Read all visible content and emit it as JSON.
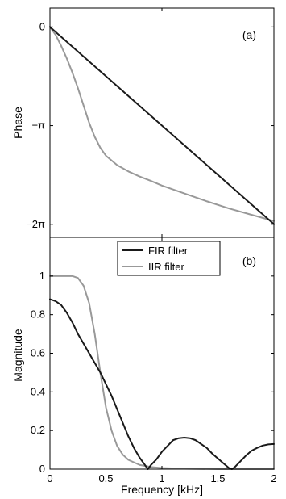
{
  "chart_data": [
    {
      "type": "line",
      "panel_label": "(a)",
      "xlabel": "",
      "ylabel": "Phase",
      "xlim": [
        0,
        2
      ],
      "ylim": [
        -6.7,
        0.6
      ],
      "x_ticks": [],
      "y_ticks": [
        {
          "value": 0,
          "label": "0"
        },
        {
          "value": -3.14159,
          "label": "−π"
        },
        {
          "value": -6.28319,
          "label": "−2π"
        }
      ],
      "series": [
        {
          "name": "FIR filter",
          "color": "#1a1a1a",
          "points": [
            [
              0,
              0
            ],
            [
              2,
              -6.28
            ]
          ]
        },
        {
          "name": "IIR filter",
          "color": "#999999",
          "points": [
            [
              0,
              0
            ],
            [
              0.05,
              -0.25
            ],
            [
              0.1,
              -0.6
            ],
            [
              0.15,
              -1.0
            ],
            [
              0.2,
              -1.45
            ],
            [
              0.25,
              -1.95
            ],
            [
              0.3,
              -2.5
            ],
            [
              0.35,
              -3.05
            ],
            [
              0.4,
              -3.5
            ],
            [
              0.45,
              -3.85
            ],
            [
              0.5,
              -4.1
            ],
            [
              0.6,
              -4.4
            ],
            [
              0.7,
              -4.6
            ],
            [
              0.8,
              -4.76
            ],
            [
              0.9,
              -4.9
            ],
            [
              1.0,
              -5.05
            ],
            [
              1.2,
              -5.3
            ],
            [
              1.4,
              -5.55
            ],
            [
              1.6,
              -5.78
            ],
            [
              1.8,
              -5.98
            ],
            [
              2.0,
              -6.18
            ]
          ]
        }
      ]
    },
    {
      "type": "line",
      "panel_label": "(b)",
      "xlabel": "Frequency [kHz]",
      "ylabel": "Magnitude",
      "xlim": [
        0,
        2
      ],
      "ylim": [
        0,
        1.2
      ],
      "x_ticks": [
        {
          "value": 0,
          "label": "0"
        },
        {
          "value": 0.5,
          "label": "0.5"
        },
        {
          "value": 1,
          "label": "1"
        },
        {
          "value": 1.5,
          "label": "1.5"
        },
        {
          "value": 2,
          "label": "2"
        }
      ],
      "y_ticks": [
        {
          "value": 0,
          "label": "0"
        },
        {
          "value": 0.2,
          "label": "0.2"
        },
        {
          "value": 0.4,
          "label": "0.4"
        },
        {
          "value": 0.6,
          "label": "0.6"
        },
        {
          "value": 0.8,
          "label": "0.8"
        },
        {
          "value": 1,
          "label": "1"
        }
      ],
      "legend": {
        "position": "top-center",
        "entries": [
          "FIR filter",
          "IIR filter"
        ]
      },
      "series": [
        {
          "name": "FIR filter",
          "color": "#1a1a1a",
          "points": [
            [
              0,
              0.88
            ],
            [
              0.05,
              0.87
            ],
            [
              0.1,
              0.85
            ],
            [
              0.15,
              0.81
            ],
            [
              0.2,
              0.76
            ],
            [
              0.25,
              0.7
            ],
            [
              0.3,
              0.65
            ],
            [
              0.35,
              0.6
            ],
            [
              0.4,
              0.55
            ],
            [
              0.45,
              0.5
            ],
            [
              0.5,
              0.44
            ],
            [
              0.55,
              0.38
            ],
            [
              0.6,
              0.31
            ],
            [
              0.65,
              0.24
            ],
            [
              0.7,
              0.17
            ],
            [
              0.75,
              0.11
            ],
            [
              0.8,
              0.06
            ],
            [
              0.85,
              0.02
            ],
            [
              0.875,
              0.0
            ],
            [
              0.9,
              0.02
            ],
            [
              0.95,
              0.05
            ],
            [
              1.0,
              0.09
            ],
            [
              1.05,
              0.12
            ],
            [
              1.1,
              0.15
            ],
            [
              1.15,
              0.16
            ],
            [
              1.2,
              0.163
            ],
            [
              1.25,
              0.16
            ],
            [
              1.3,
              0.15
            ],
            [
              1.35,
              0.13
            ],
            [
              1.4,
              0.11
            ],
            [
              1.45,
              0.08
            ],
            [
              1.5,
              0.055
            ],
            [
              1.55,
              0.03
            ],
            [
              1.6,
              0.005
            ],
            [
              1.625,
              0.0
            ],
            [
              1.65,
              0.01
            ],
            [
              1.7,
              0.04
            ],
            [
              1.75,
              0.07
            ],
            [
              1.8,
              0.095
            ],
            [
              1.85,
              0.11
            ],
            [
              1.9,
              0.122
            ],
            [
              1.95,
              0.128
            ],
            [
              2.0,
              0.13
            ]
          ]
        },
        {
          "name": "IIR filter",
          "color": "#999999",
          "points": [
            [
              0,
              1.0
            ],
            [
              0.1,
              1.0
            ],
            [
              0.2,
              1.0
            ],
            [
              0.25,
              0.99
            ],
            [
              0.3,
              0.95
            ],
            [
              0.35,
              0.86
            ],
            [
              0.4,
              0.7
            ],
            [
              0.45,
              0.5
            ],
            [
              0.5,
              0.32
            ],
            [
              0.55,
              0.2
            ],
            [
              0.6,
              0.12
            ],
            [
              0.65,
              0.075
            ],
            [
              0.7,
              0.048
            ],
            [
              0.8,
              0.022
            ],
            [
              0.9,
              0.011
            ],
            [
              1.0,
              0.006
            ],
            [
              1.2,
              0.002
            ],
            [
              1.5,
              0.0
            ],
            [
              2.0,
              0.0
            ]
          ]
        }
      ]
    }
  ]
}
